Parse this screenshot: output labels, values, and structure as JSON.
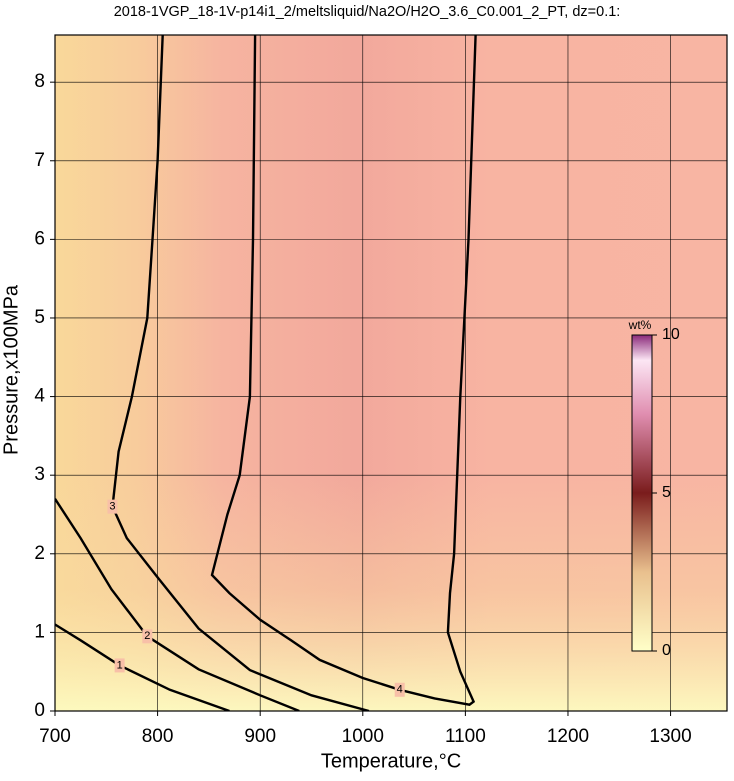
{
  "chart_data": {
    "type": "contour",
    "title": "2018-1VGP_18-1V-p14i1_2/meltsliquid/Na2O/H2O_3.6_C0.001_2_PT, dz=0.1:",
    "xlabel": "Temperature,°C",
    "ylabel": "Pressure,x100MPa",
    "xlim": [
      700,
      1355
    ],
    "ylim": [
      0,
      8.6
    ],
    "xticks": [
      700,
      800,
      900,
      1000,
      1100,
      1200,
      1300
    ],
    "yticks": [
      0,
      1,
      2,
      3,
      4,
      5,
      6,
      7,
      8
    ],
    "grid": true,
    "color": "#000000",
    "contours": [
      {
        "level": 4,
        "x": [
          895,
          893,
          890,
          880,
          868,
          853,
          870,
          900,
          930,
          958,
          1000,
          1036,
          1070,
          1104,
          1108,
          1095,
          1083,
          1085,
          1089,
          1095,
          1103,
          1110
        ],
        "y": [
          8.6,
          6,
          4,
          3,
          2.5,
          1.73,
          1.5,
          1.16,
          0.9,
          0.65,
          0.42,
          0.27,
          0.16,
          0.08,
          0.12,
          0.5,
          1.0,
          1.5,
          2,
          4,
          6,
          8.6
        ]
      },
      {
        "level": 3,
        "x": [
          805,
          800,
          795,
          790,
          775,
          762,
          756,
          770,
          800,
          840,
          890,
          950,
          1006
        ],
        "y": [
          8.6,
          7,
          6,
          5,
          4,
          3.3,
          2.6,
          2.2,
          1.7,
          1.05,
          0.52,
          0.2,
          0
        ]
      },
      {
        "level": 2,
        "x": [
          700,
          725,
          755,
          790,
          840,
          900,
          938
        ],
        "y": [
          2.7,
          2.2,
          1.55,
          0.95,
          0.53,
          0.2,
          0
        ]
      },
      {
        "level": 1,
        "x": [
          700,
          725,
          763,
          812,
          870
        ],
        "y": [
          1.1,
          0.9,
          0.58,
          0.27,
          0
        ]
      }
    ],
    "colorbar": {
      "label": "wt%",
      "lim": [
        0,
        10
      ],
      "ticks": [
        0,
        5,
        10
      ]
    }
  }
}
